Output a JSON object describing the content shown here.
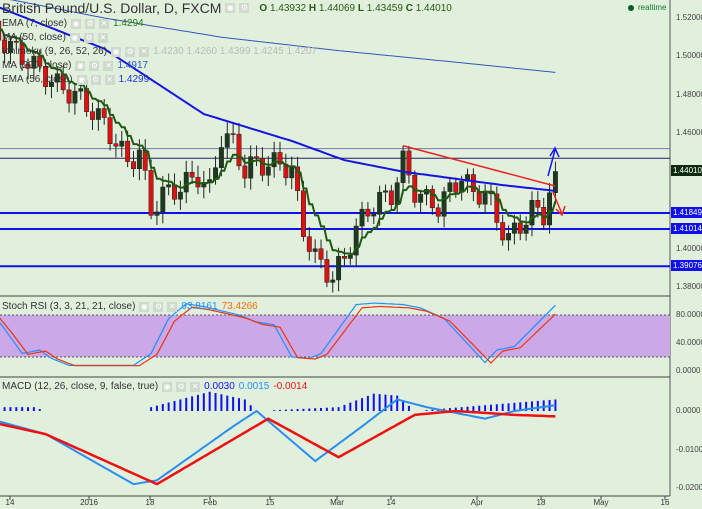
{
  "header": {
    "title": "British Pound/U.S. Dollar, D, FXCM",
    "ohlc": [
      {
        "k": "O",
        "v": "1.43932"
      },
      {
        "k": "H",
        "v": "1.44069"
      },
      {
        "k": "L",
        "v": "1.43459"
      },
      {
        "k": "C",
        "v": "1.44010"
      }
    ],
    "realtime": "realtime"
  },
  "legends": [
    {
      "label": "EMA (7, close)",
      "value": "1.4294",
      "color": "#2a7a12"
    },
    {
      "label": "MA (50, close)",
      "value": "",
      "color": "#2233dd"
    },
    {
      "label": "Ichimoku (9, 26, 52, 26)",
      "value": "1.4230  1.4260  1.4399  1.4245  1.4207",
      "color": "#bbb"
    },
    {
      "label": "MA (200, close)",
      "value": "1.4917",
      "color": "#2255cc"
    },
    {
      "label": "EMA (56, close)",
      "value": "1.4299",
      "color": "#1a33dd"
    }
  ],
  "stoch": {
    "label": "Stoch RSI (3, 3, 21, 21, close)",
    "k": "93.8161",
    "d": "73.4266"
  },
  "macd": {
    "label": "MACD (12, 26, close, 9, false, true)",
    "v1": "0.0030",
    "v2": "0.0015",
    "v3": "-0.0014"
  },
  "price_axis": [
    "1.52000",
    "1.50000",
    "1.48000",
    "1.46000",
    "1.40000",
    "1.38000"
  ],
  "price_tags": [
    {
      "v": "1.44010",
      "bg": "#0d2a0d"
    },
    {
      "v": "1.41849",
      "bg": "#1010ee"
    },
    {
      "v": "1.41014",
      "bg": "#1010ee"
    },
    {
      "v": "1.39076",
      "bg": "#1010ee"
    }
  ],
  "stoch_axis": [
    "80.0000",
    "40.0000",
    "0.0000"
  ],
  "macd_axis": [
    "0.0000",
    "-0.0100",
    "-0.0200"
  ],
  "x_axis": [
    "14",
    "2016",
    "18",
    "Feb",
    "15",
    "Mar",
    "14",
    "Apr",
    "18",
    "May",
    "16"
  ],
  "chart_data": {
    "type": "candlestick",
    "symbol": "GBPUSD D",
    "close_keypoints": [
      [
        0,
        1.515
      ],
      [
        4,
        1.505
      ],
      [
        8,
        1.495
      ],
      [
        12,
        1.485
      ],
      [
        16,
        1.478
      ],
      [
        20,
        1.465
      ],
      [
        24,
        1.445
      ],
      [
        26,
        1.45
      ],
      [
        28,
        1.42
      ],
      [
        30,
        1.428
      ],
      [
        33,
        1.432
      ],
      [
        36,
        1.438
      ],
      [
        38,
        1.43
      ],
      [
        40,
        1.458
      ],
      [
        42,
        1.455
      ],
      [
        44,
        1.44
      ],
      [
        46,
        1.445
      ],
      [
        48,
        1.443
      ],
      [
        50,
        1.445
      ],
      [
        52,
        1.44
      ],
      [
        54,
        1.41
      ],
      [
        56,
        1.395
      ],
      [
        58,
        1.388
      ],
      [
        59,
        1.385
      ],
      [
        61,
        1.395
      ],
      [
        63,
        1.41
      ],
      [
        65,
        1.42
      ],
      [
        67,
        1.425
      ],
      [
        69,
        1.428
      ],
      [
        71,
        1.445
      ],
      [
        73,
        1.43
      ],
      [
        75,
        1.425
      ],
      [
        77,
        1.422
      ],
      [
        79,
        1.43
      ],
      [
        81,
        1.438
      ],
      [
        83,
        1.428
      ],
      [
        85,
        1.43
      ],
      [
        87,
        1.415
      ],
      [
        89,
        1.405
      ],
      [
        91,
        1.412
      ],
      [
        93,
        1.42
      ],
      [
        95,
        1.418
      ],
      [
        96,
        1.43
      ],
      [
        97,
        1.4401
      ]
    ],
    "ma50_keypoints": [
      [
        0,
        1.528
      ],
      [
        20,
        1.504
      ],
      [
        37,
        1.47
      ],
      [
        52,
        1.456
      ],
      [
        61,
        1.446
      ],
      [
        71,
        1.44
      ],
      [
        88,
        1.433
      ],
      [
        97,
        1.43
      ]
    ],
    "ma200_keypoints": [
      [
        0,
        1.532
      ],
      [
        20,
        1.52
      ],
      [
        40,
        1.51
      ],
      [
        60,
        1.503
      ],
      [
        80,
        1.497
      ],
      [
        97,
        1.4917
      ]
    ],
    "hlines": [
      1.452,
      1.447,
      1.41849,
      1.41014,
      1.39076
    ],
    "trendline": [
      [
        71,
        1.4535
      ],
      [
        97,
        1.4325
      ]
    ],
    "stoch_k": [
      [
        -2,
        85
      ],
      [
        0,
        92
      ],
      [
        3,
        60
      ],
      [
        6,
        25
      ],
      [
        9,
        30
      ],
      [
        11,
        18
      ],
      [
        14,
        8
      ],
      [
        25,
        8
      ],
      [
        28,
        25
      ],
      [
        31,
        75
      ],
      [
        34,
        96
      ],
      [
        37,
        92
      ],
      [
        43,
        80
      ],
      [
        46,
        70
      ],
      [
        49,
        66
      ],
      [
        52,
        20
      ],
      [
        55,
        18
      ],
      [
        57,
        25
      ],
      [
        60,
        60
      ],
      [
        63,
        95
      ],
      [
        66,
        97
      ],
      [
        71,
        95
      ],
      [
        74,
        90
      ],
      [
        78,
        75
      ],
      [
        81,
        48
      ],
      [
        85,
        12
      ],
      [
        87,
        30
      ],
      [
        90,
        35
      ],
      [
        97,
        94
      ]
    ],
    "macd_line": [
      [
        -2,
        -0.001
      ],
      [
        10,
        -0.006
      ],
      [
        25,
        -0.019
      ],
      [
        29,
        -0.018
      ],
      [
        42,
        -0.004
      ],
      [
        46,
        0
      ],
      [
        56,
        -0.013
      ],
      [
        64,
        -0.004
      ],
      [
        70,
        0.003
      ],
      [
        75,
        0.001
      ],
      [
        85,
        -0.002
      ],
      [
        90,
        0
      ],
      [
        97,
        0.0015
      ]
    ],
    "signal_line": [
      [
        -2,
        -0.002
      ],
      [
        10,
        -0.006
      ],
      [
        29,
        -0.019
      ],
      [
        48,
        -0.002
      ],
      [
        60,
        -0.012
      ],
      [
        73,
        -0.001
      ],
      [
        80,
        0
      ],
      [
        90,
        -0.001
      ],
      [
        97,
        -0.0014
      ]
    ],
    "histogram": [
      [
        -2,
        0.001
      ],
      [
        8,
        0.001
      ],
      [
        10,
        0
      ],
      [
        27,
        0
      ],
      [
        28,
        0.001
      ],
      [
        38,
        0.005
      ],
      [
        44,
        0.003
      ],
      [
        46,
        0
      ],
      [
        60,
        0.001
      ],
      [
        66,
        0.0045
      ],
      [
        70,
        0.004
      ],
      [
        73,
        0
      ],
      [
        97,
        0.003
      ]
    ]
  }
}
